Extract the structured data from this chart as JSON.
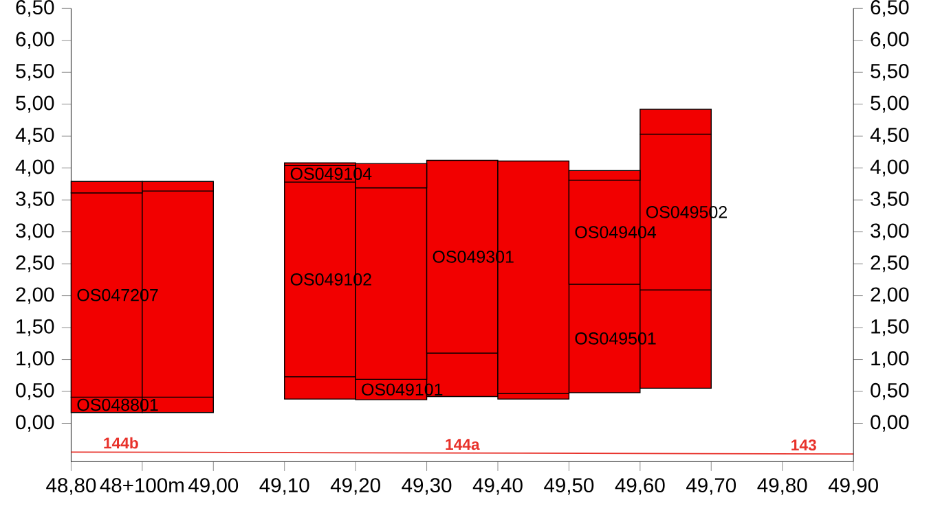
{
  "chart_data": {
    "type": "bar",
    "x": [
      48.85,
      48.95,
      49.15,
      49.25,
      49.35,
      49.45,
      49.55,
      49.65
    ],
    "series": [
      {
        "color": "#f20000",
        "base": [
          0.17,
          0.17,
          0.38,
          0.37,
          0.42,
          0.38,
          0.48,
          0.55
        ],
        "values": [
          0.24,
          0.24,
          0.35,
          0.32,
          0.68,
          0.09,
          1.7,
          1.54
        ],
        "value_labels": [
          "OS048801",
          null,
          null,
          "OS049101",
          null,
          null,
          "OS049501",
          null
        ]
      },
      {
        "color": "#f20000",
        "base": [
          0.41,
          0.41,
          0.73,
          0.69,
          1.1,
          0.47,
          2.18,
          2.09
        ],
        "values": [
          3.2,
          3.23,
          3.05,
          3.0,
          3.02,
          3.64,
          1.63,
          2.44
        ],
        "value_labels": [
          "OS047207",
          null,
          "OS049102",
          null,
          "OS049301",
          null,
          "OS049404",
          "OS049502"
        ]
      },
      {
        "color": "#f20000",
        "base": [
          3.61,
          3.64,
          3.78,
          3.69,
          null,
          null,
          3.81,
          4.53
        ],
        "values": [
          0.18,
          0.15,
          0.26,
          0.38,
          null,
          null,
          0.15,
          0.39
        ],
        "value_labels": [
          null,
          null,
          "OS049104",
          null,
          null,
          null,
          null,
          null
        ]
      },
      {
        "color": "#f20000",
        "base": [
          null,
          null,
          4.04,
          null,
          null,
          null,
          null,
          null
        ],
        "values": [
          null,
          null,
          0.04,
          null,
          null,
          null,
          null,
          null
        ]
      },
      {
        "type": "line",
        "color": "#e8322b",
        "x": [
          48.8,
          49.9
        ],
        "values": [
          -0.45,
          -0.48
        ]
      }
    ],
    "annotations": [
      {
        "text": "144b",
        "x": 48.87,
        "y": -0.45
      },
      {
        "text": "144a",
        "x": 49.35,
        "y": -0.47
      },
      {
        "text": "143",
        "x": 49.83,
        "y": -0.48
      }
    ],
    "xlim": [
      48.8,
      49.9
    ],
    "xticks": [
      {
        "value": 48.8,
        "label": "48,80"
      },
      {
        "value": 48.9,
        "label": "48+100m"
      },
      {
        "value": 49.0,
        "label": "49,00"
      },
      {
        "value": 49.1,
        "label": "49,10"
      },
      {
        "value": 49.2,
        "label": "49,20"
      },
      {
        "value": 49.3,
        "label": "49,30"
      },
      {
        "value": 49.4,
        "label": "49,40"
      },
      {
        "value": 49.5,
        "label": "49,50"
      },
      {
        "value": 49.6,
        "label": "49,60"
      },
      {
        "value": 49.7,
        "label": "49,70"
      },
      {
        "value": 49.8,
        "label": "49,80"
      },
      {
        "value": 49.9,
        "label": "49,90"
      }
    ],
    "ylim": [
      -0.6,
      6.5
    ],
    "yticks": [
      {
        "value": 0,
        "label": "0,00"
      },
      {
        "value": 0.5,
        "label": "0,50"
      },
      {
        "value": 1,
        "label": "1,00"
      },
      {
        "value": 1.5,
        "label": "1,50"
      },
      {
        "value": 2,
        "label": "2,00"
      },
      {
        "value": 2.5,
        "label": "2,50"
      },
      {
        "value": 3,
        "label": "3,00"
      },
      {
        "value": 3.5,
        "label": "3,50"
      },
      {
        "value": 4,
        "label": "4,00"
      },
      {
        "value": 4.5,
        "label": "4,50"
      },
      {
        "value": 5,
        "label": "5,00"
      },
      {
        "value": 5.5,
        "label": "5,50"
      },
      {
        "value": 6,
        "label": "6,00"
      },
      {
        "value": 6.5,
        "label": "6,50"
      }
    ],
    "y2lim": [
      -0.6,
      6.5
    ],
    "y2ticks": [
      {
        "value": 0,
        "label": "0,00"
      },
      {
        "value": 0.5,
        "label": "0,50"
      },
      {
        "value": 1,
        "label": "1,00"
      },
      {
        "value": 1.5,
        "label": "1,50"
      },
      {
        "value": 2,
        "label": "2,00"
      },
      {
        "value": 2.5,
        "label": "2,50"
      },
      {
        "value": 3,
        "label": "3,00"
      },
      {
        "value": 3.5,
        "label": "3,50"
      },
      {
        "value": 4,
        "label": "4,00"
      },
      {
        "value": 4.5,
        "label": "4,50"
      },
      {
        "value": 5,
        "label": "5,00"
      },
      {
        "value": 5.5,
        "label": "5,50"
      },
      {
        "value": 6,
        "label": "6,00"
      },
      {
        "value": 6.5,
        "label": "6,50"
      }
    ]
  }
}
